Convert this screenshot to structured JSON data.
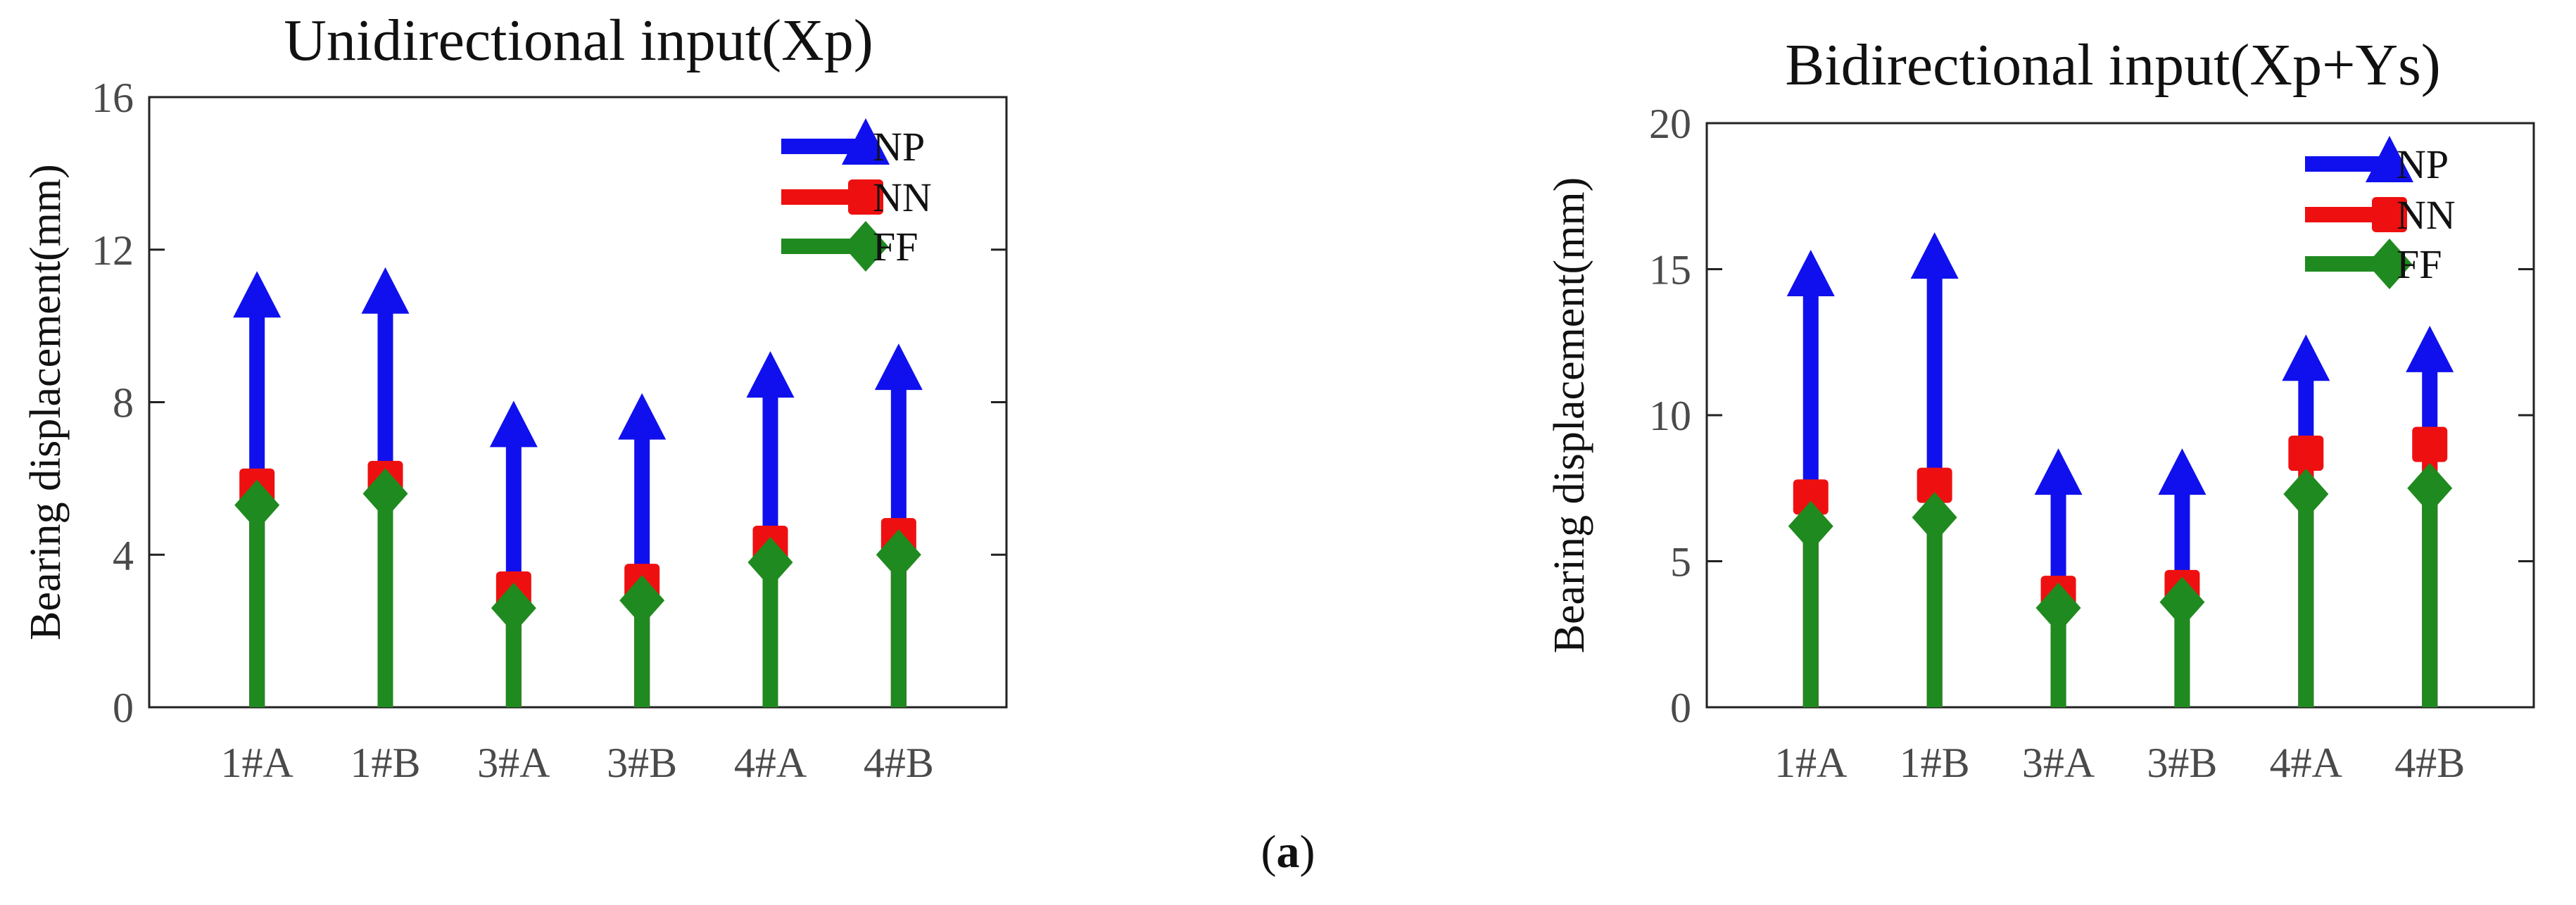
{
  "chart_data": [
    {
      "type": "stem",
      "title": "Unidirectional input(Xp)",
      "xlabel": "",
      "ylabel": "Bearing displacement(mm)",
      "ylim": [
        0,
        16
      ],
      "yticks": [
        0,
        4,
        8,
        12,
        16
      ],
      "categories": [
        "1#A",
        "1#B",
        "3#A",
        "3#B",
        "4#A",
        "4#B"
      ],
      "legend_position": "top-right",
      "series": [
        {
          "name": "NP",
          "marker": "triangle",
          "color": "#1010ee",
          "values": [
            10.7,
            10.8,
            7.3,
            7.5,
            8.6,
            8.8
          ]
        },
        {
          "name": "NN",
          "marker": "square",
          "color": "#ee1010",
          "values": [
            5.8,
            6.0,
            3.1,
            3.3,
            4.3,
            4.5
          ]
        },
        {
          "name": "FF",
          "marker": "diamond",
          "color": "#1f8a1f",
          "values": [
            5.3,
            5.6,
            2.6,
            2.8,
            3.8,
            4.0
          ]
        }
      ]
    },
    {
      "type": "stem",
      "title": "Bidirectional input(Xp+Ys)",
      "xlabel": "",
      "ylabel": "Bearing displacement(mm)",
      "ylim": [
        0,
        20
      ],
      "yticks": [
        0,
        5,
        10,
        15,
        20
      ],
      "categories": [
        "1#A",
        "1#B",
        "3#A",
        "3#B",
        "4#A",
        "4#B"
      ],
      "legend_position": "top-right",
      "series": [
        {
          "name": "NP",
          "marker": "triangle",
          "color": "#1010ee",
          "values": [
            14.7,
            15.3,
            7.9,
            7.9,
            11.8,
            12.1
          ]
        },
        {
          "name": "NN",
          "marker": "square",
          "color": "#ee1010",
          "values": [
            7.2,
            7.6,
            3.9,
            4.1,
            8.7,
            9.0
          ]
        },
        {
          "name": "FF",
          "marker": "diamond",
          "color": "#1f8a1f",
          "values": [
            6.2,
            6.5,
            3.4,
            3.6,
            7.3,
            7.5
          ]
        }
      ]
    }
  ],
  "caption": {
    "open": "(",
    "label": "a",
    "close": ")"
  }
}
